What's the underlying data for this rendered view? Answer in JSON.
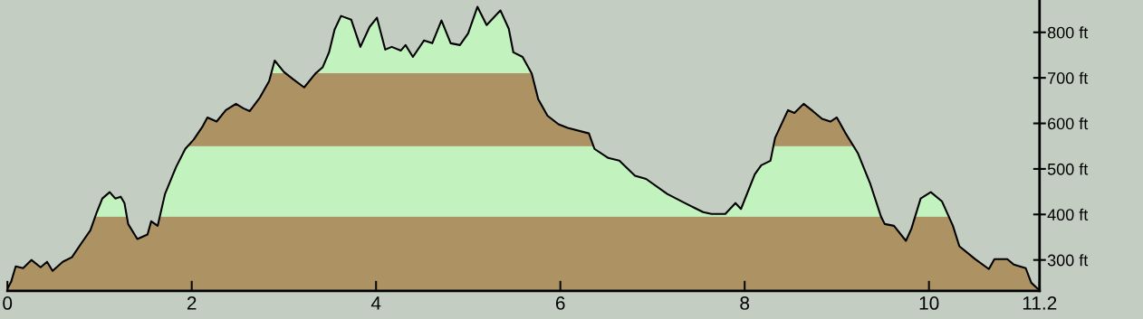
{
  "chart_data": {
    "type": "area",
    "x": [
      0,
      0.04,
      0.09,
      0.17,
      0.26,
      0.36,
      0.43,
      0.49,
      0.6,
      0.7,
      0.8,
      0.9,
      0.97,
      1.03,
      1.11,
      1.17,
      1.23,
      1.27,
      1.31,
      1.41,
      1.52,
      1.56,
      1.63,
      1.71,
      1.83,
      1.93,
      2.02,
      2.12,
      2.17,
      2.27,
      2.37,
      2.48,
      2.56,
      2.63,
      2.74,
      2.84,
      2.9,
      3.0,
      3.1,
      3.22,
      3.34,
      3.42,
      3.49,
      3.55,
      3.62,
      3.73,
      3.83,
      3.93,
      4.01,
      4.1,
      4.17,
      4.27,
      4.32,
      4.4,
      4.52,
      4.61,
      4.71,
      4.81,
      4.91,
      5.0,
      5.1,
      5.2,
      5.35,
      5.44,
      5.49,
      5.59,
      5.69,
      5.76,
      5.86,
      5.98,
      6.08,
      6.31,
      6.37,
      6.52,
      6.64,
      6.81,
      6.93,
      7.16,
      7.35,
      7.45,
      7.55,
      7.64,
      7.79,
      7.9,
      7.96,
      8.11,
      8.18,
      8.28,
      8.33,
      8.47,
      8.54,
      8.64,
      8.74,
      8.84,
      8.93,
      9.0,
      9.09,
      9.23,
      9.36,
      9.48,
      9.52,
      9.62,
      9.75,
      9.81,
      9.91,
      10.02,
      10.14,
      10.26,
      10.33,
      10.5,
      10.65,
      10.71,
      10.85,
      10.92,
      11.05,
      11.11,
      11.18,
      11.2
    ],
    "series": [
      {
        "color": "#ae9363",
        "values": [
          237,
          252,
          286,
          282,
          300,
          284,
          296,
          276,
          296,
          306,
          336,
          365,
          405,
          435,
          449,
          435,
          439,
          425,
          379,
          346,
          356,
          385,
          375,
          445,
          504,
          544,
          564,
          594,
          613,
          604,
          629,
          643,
          633,
          627,
          657,
          693,
          738,
          713,
          697,
          679,
          709,
          723,
          756,
          806,
          836,
          828,
          768,
          812,
          832,
          762,
          768,
          760,
          772,
          746,
          782,
          776,
          826,
          776,
          772,
          798,
          856,
          816,
          848,
          808,
          756,
          746,
          709,
          653,
          617,
          598,
          590,
          578,
          544,
          524,
          518,
          485,
          478,
          445,
          425,
          415,
          405,
          401,
          401,
          425,
          412,
          488,
          508,
          518,
          568,
          629,
          623,
          643,
          627,
          610,
          604,
          613,
          580,
          534,
          469,
          395,
          379,
          375,
          342,
          369,
          435,
          449,
          429,
          375,
          330,
          302,
          280,
          302,
          302,
          290,
          282,
          250,
          237,
          235
        ]
      }
    ],
    "xlim": [
      0,
      11.2
    ],
    "ylim": [
      232,
      871
    ],
    "xticks": [
      0,
      2,
      4,
      6,
      8,
      10,
      11.2
    ],
    "yticks": [
      {
        "value": 300,
        "label": "300 ft"
      },
      {
        "value": 400,
        "label": "400 ft"
      },
      {
        "value": 500,
        "label": "500 ft"
      },
      {
        "value": 600,
        "label": "600 ft"
      },
      {
        "value": 700,
        "label": "700 ft"
      },
      {
        "value": 800,
        "label": "800 ft"
      }
    ],
    "bands": [
      {
        "axis": "y",
        "from": 232,
        "to": 395,
        "color": "#ae9363"
      },
      {
        "axis": "y",
        "from": 395,
        "to": 550,
        "color": "#c4f8c4"
      },
      {
        "axis": "y",
        "from": 550,
        "to": 710,
        "color": "#ae9363"
      },
      {
        "axis": "y",
        "from": 710,
        "to": 871,
        "color": "#c4f8c4"
      }
    ],
    "grid": false,
    "legend": false
  }
}
